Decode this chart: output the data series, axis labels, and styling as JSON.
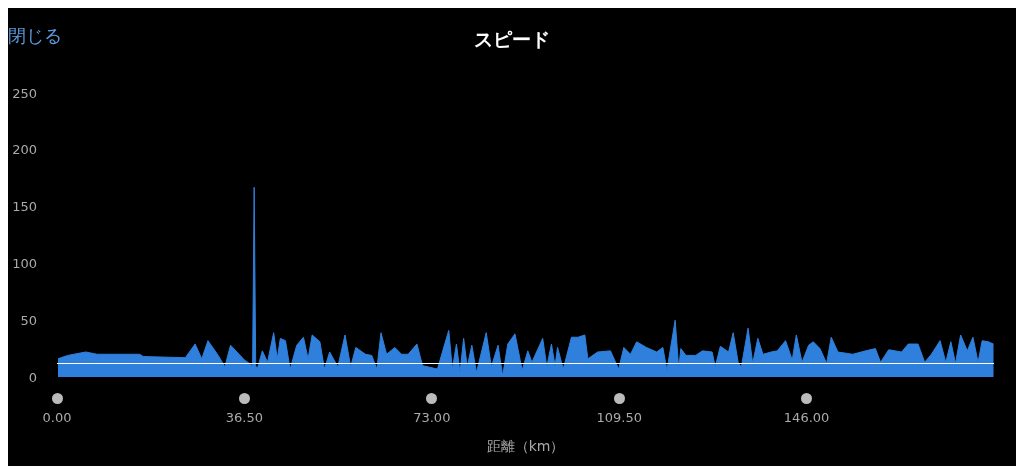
{
  "chart_data": {
    "type": "area",
    "title": "スピード",
    "xlabel": "距離（km）",
    "annotations": [
      "閉じる"
    ],
    "x": [
      0.2,
      2.1,
      5.6,
      7.8,
      16.1,
      16.8,
      25.0,
      26.9,
      28.2,
      29.4,
      31.4,
      32.7,
      33.8,
      36.5,
      38.1,
      38.4,
      38.7,
      39.0,
      40.0,
      41.0,
      42.2,
      42.9,
      43.5,
      44.5,
      45.4,
      46.7,
      48.0,
      48.9,
      49.7,
      51.2,
      52.1,
      53.1,
      54.7,
      56.1,
      57.2,
      58.2,
      60.1,
      61.3,
      62.3,
      63.1,
      64.2,
      65.8,
      67.1,
      68.4,
      70.1,
      71.2,
      74.1,
      76.3,
      77.0,
      77.8,
      78.5,
      79.2,
      79.9,
      80.8,
      81.7,
      83.6,
      84.6,
      85.9,
      86.8,
      87.8,
      89.2,
      90.6,
      91.7,
      92.5,
      94.6,
      95.4,
      96.3,
      97.0,
      97.5,
      98.6,
      100.2,
      101.5,
      102.8,
      103.4,
      105.3,
      107.8,
      109.4,
      110.4,
      111.7,
      112.9,
      114.8,
      116.8,
      118.0,
      118.8,
      120.4,
      121.1,
      121.5,
      122.5,
      124.4,
      125.7,
      127.6,
      128.2,
      129.2,
      130.8,
      131.7,
      132.7,
      133.3,
      134.6,
      135.5,
      136.5,
      137.5,
      139.1,
      140.3,
      141.9,
      143.2,
      144.0,
      145.1,
      146.4,
      147.3,
      148.6,
      149.9,
      150.8,
      152.1,
      155.0,
      157.5,
      159.4,
      160.4,
      162.0,
      164.5,
      165.8,
      167.7,
      169.0,
      170.3,
      172.0,
      173.1,
      174.1,
      175.0,
      176.0,
      177.3,
      178.4,
      179.4,
      180.2,
      181.4,
      182.4
    ],
    "series": [
      {
        "color": "#2f80dc",
        "values": [
          16,
          19,
          22,
          20,
          20,
          18,
          17,
          29,
          16,
          32,
          19,
          9,
          28,
          15,
          10,
          167,
          10,
          7,
          23,
          13,
          39,
          16,
          34,
          32,
          7,
          28,
          35,
          16,
          37,
          31,
          7,
          22,
          9,
          37,
          9,
          26,
          20,
          19,
          7,
          39,
          20,
          26,
          20,
          20,
          29,
          10,
          7,
          41,
          7,
          29,
          4,
          34,
          9,
          28,
          4,
          39,
          9,
          28,
          1,
          29,
          38,
          6,
          23,
          13,
          34,
          9,
          29,
          10,
          26,
          7,
          35,
          35,
          37,
          16,
          22,
          23,
          7,
          26,
          20,
          31,
          26,
          22,
          26,
          6,
          50,
          7,
          25,
          19,
          19,
          23,
          22,
          9,
          27,
          22,
          39,
          12,
          9,
          43,
          12,
          34,
          20,
          22,
          23,
          32,
          15,
          37,
          13,
          28,
          31,
          25,
          12,
          35,
          22,
          20,
          23,
          25,
          13,
          24,
          22,
          29,
          29,
          13,
          20,
          32,
          13,
          31,
          12,
          37,
          23,
          35,
          13,
          32,
          31,
          29
        ]
      }
    ],
    "xlim": [
      0,
      182.5
    ],
    "ylim": [
      0,
      250
    ],
    "xticks": [
      {
        "value": 0,
        "label": "0.00"
      },
      {
        "value": 36.5,
        "label": "36.50"
      },
      {
        "value": 73,
        "label": "73.00"
      },
      {
        "value": 109.5,
        "label": "109.50"
      },
      {
        "value": 146,
        "label": "146.00"
      }
    ],
    "yticks": [
      0,
      50,
      100,
      150,
      200,
      250
    ],
    "ref_lines": [
      {
        "axis": "y",
        "value": 12,
        "color": "#ffffff"
      }
    ],
    "grid": false
  }
}
